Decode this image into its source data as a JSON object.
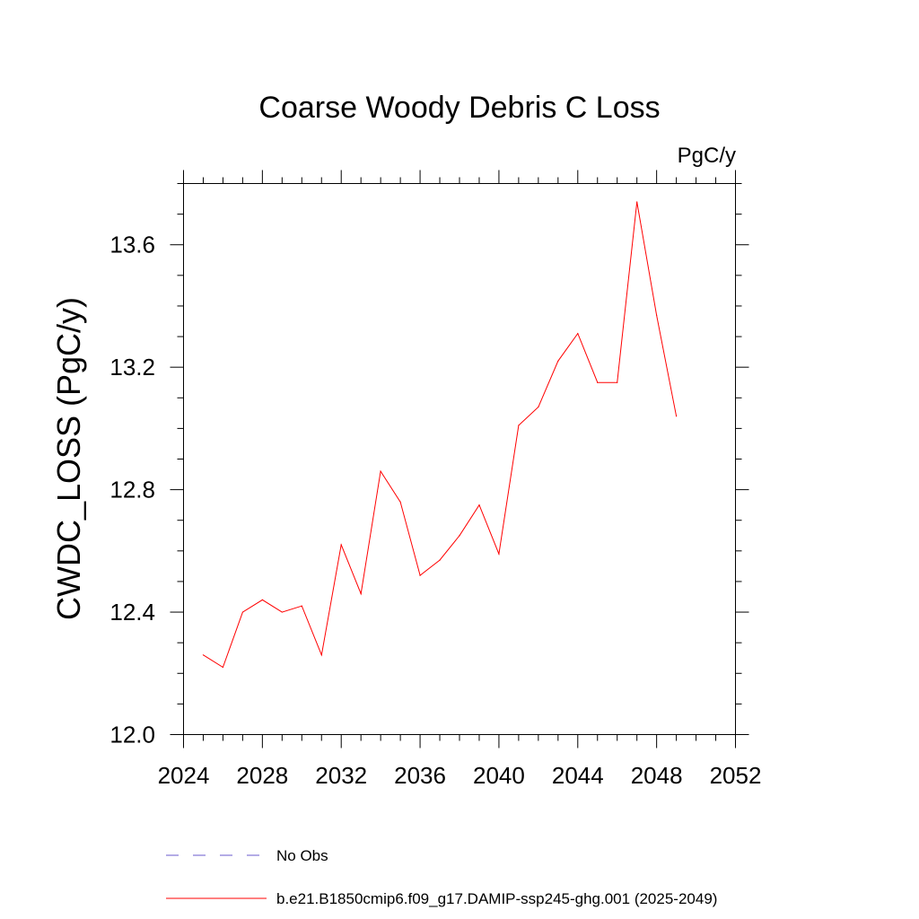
{
  "chart_data": {
    "type": "line",
    "title": "Coarse Woody Debris C Loss",
    "units": "PgC/y",
    "ylabel": "CWDC_LOSS  (PgC/y)",
    "xlabel": "",
    "xlim": [
      2024,
      2052
    ],
    "ylim": [
      12.0,
      13.8
    ],
    "x_ticks": [
      "2024",
      "2028",
      "2032",
      "2036",
      "2040",
      "2044",
      "2048",
      "2052"
    ],
    "y_ticks": [
      "12.0",
      "12.4",
      "12.8",
      "13.2",
      "13.6"
    ],
    "legend_placement": "bottom",
    "series": [
      {
        "name": "No Obs",
        "color": "#6a5acd",
        "style": "dashed",
        "x": [],
        "values": []
      },
      {
        "name": "b.e21.B1850cmip6.f09_g17.DAMIP-ssp245-ghg.001 (2025-2049)",
        "color": "#ff0000",
        "style": "solid",
        "x": [
          2025,
          2026,
          2027,
          2028,
          2029,
          2030,
          2031,
          2032,
          2033,
          2034,
          2035,
          2036,
          2037,
          2038,
          2039,
          2040,
          2041,
          2042,
          2043,
          2044,
          2045,
          2046,
          2047,
          2048,
          2049
        ],
        "values": [
          12.26,
          12.22,
          12.4,
          12.44,
          12.4,
          12.42,
          12.26,
          12.62,
          12.46,
          12.86,
          12.76,
          12.52,
          12.57,
          12.65,
          12.75,
          12.59,
          13.01,
          13.07,
          13.22,
          13.31,
          13.15,
          13.15,
          13.74,
          13.37,
          13.04
        ]
      }
    ]
  }
}
